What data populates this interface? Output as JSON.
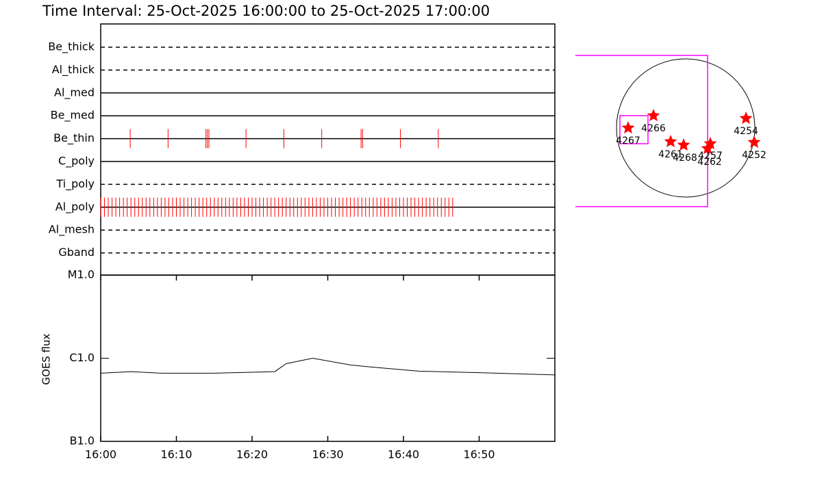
{
  "chart_data": [
    {
      "type": "timeline",
      "title": "Time Interval: 25-Oct-2025 16:00:00 to 25-Oct-2025 17:00:00",
      "xlim": [
        0,
        60
      ],
      "color": "#ff0000",
      "rows": [
        {
          "name": "Be_thick",
          "line": "dashed",
          "events": []
        },
        {
          "name": "Al_thick",
          "line": "dashed",
          "events": []
        },
        {
          "name": "Al_med",
          "line": "solid",
          "events": []
        },
        {
          "name": "Be_med",
          "line": "solid",
          "events": []
        },
        {
          "name": "Be_thin",
          "line": "solid",
          "events": [
            3.9,
            8.9,
            13.9,
            14.1,
            14.3,
            19.2,
            24.2,
            29.2,
            34.4,
            34.6,
            39.6,
            44.6
          ]
        },
        {
          "name": "C_poly",
          "line": "solid",
          "events": []
        },
        {
          "name": "Ti_poly",
          "line": "dashed",
          "events": []
        },
        {
          "name": "Al_poly",
          "line": "solid",
          "events": [
            0,
            0.5,
            1,
            1.5,
            2,
            2.5,
            3,
            3.5,
            4,
            4.5,
            5,
            5.5,
            6,
            6.5,
            7,
            7.5,
            8,
            8.5,
            9,
            9.5,
            10,
            10.5,
            11,
            11.5,
            12,
            12.5,
            13,
            13.5,
            14,
            14.5,
            15,
            15.5,
            16,
            16.5,
            17,
            17.5,
            18,
            18.5,
            19,
            19.5,
            20,
            20.5,
            21,
            21.5,
            22,
            22.5,
            23,
            23.5,
            24,
            24.5,
            25,
            25.5,
            26,
            26.5,
            27,
            27.5,
            28,
            28.5,
            29,
            29.5,
            30,
            30.5,
            31,
            31.5,
            32,
            32.5,
            33,
            33.5,
            34,
            34.5,
            35,
            35.5,
            36,
            36.5,
            37,
            37.5,
            38,
            38.5,
            39,
            39.5,
            40,
            40.5,
            41,
            41.5,
            42,
            42.5,
            43,
            43.5,
            44,
            44.5,
            45,
            45.5,
            46,
            46.5
          ]
        },
        {
          "name": "Al_mesh",
          "line": "dashed",
          "events": []
        },
        {
          "name": "Gband",
          "line": "dashed",
          "events": []
        }
      ]
    },
    {
      "type": "line",
      "ylabel": "GOES flux",
      "log": true,
      "color": "#000000",
      "x": [
        0,
        4,
        8,
        15,
        23,
        24.5,
        28,
        33,
        36,
        42,
        50,
        60
      ],
      "values": [
        6.6e-07,
        6.9e-07,
        6.6e-07,
        6.6e-07,
        6.9e-07,
        8.6e-07,
        1e-06,
        8.3e-07,
        7.8e-07,
        7e-07,
        6.7e-07,
        6.3e-07
      ],
      "xlim": [
        0,
        60
      ],
      "xticks": [
        {
          "value": 0,
          "label": "16:00"
        },
        {
          "value": 10,
          "label": "16:10"
        },
        {
          "value": 20,
          "label": "16:20"
        },
        {
          "value": 30,
          "label": "16:30"
        },
        {
          "value": 40,
          "label": "16:40"
        },
        {
          "value": 50,
          "label": "16:50"
        }
      ],
      "ylim": [
        1e-07,
        1e-05
      ],
      "yticks": [
        {
          "value": 1e-07,
          "label": "B1.0"
        },
        {
          "value": 1e-06,
          "label": "C1.0"
        },
        {
          "value": 1e-05,
          "label": "M1.0"
        }
      ]
    }
  ],
  "context_map": {
    "regions": [
      "4267",
      "4266",
      "4261",
      "4268",
      "4257",
      "4262",
      "4254",
      "4252"
    ]
  }
}
